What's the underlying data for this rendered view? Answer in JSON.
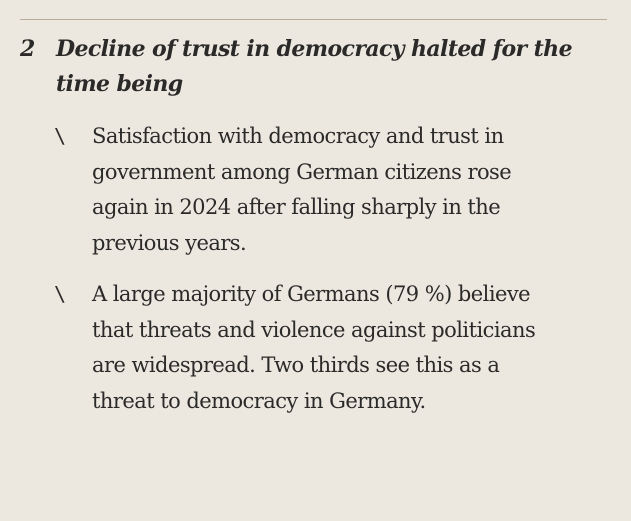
{
  "section": {
    "number": "2",
    "title": "Decline of trust in democracy halted for the time being",
    "bullet_marker": "\\",
    "bullets": [
      "Satisfaction with democracy and trust in government among German citizens rose again in 2024 after falling sharply in the previous years.",
      "A large majority of Germans (79 %) believe that threats and violence against politicians are widespread. Two thirds see this as a threat to democracy in Germany."
    ]
  },
  "colors": {
    "background": "#ece8e0",
    "rule": "#b8ab97",
    "text": "#2b2a29"
  }
}
